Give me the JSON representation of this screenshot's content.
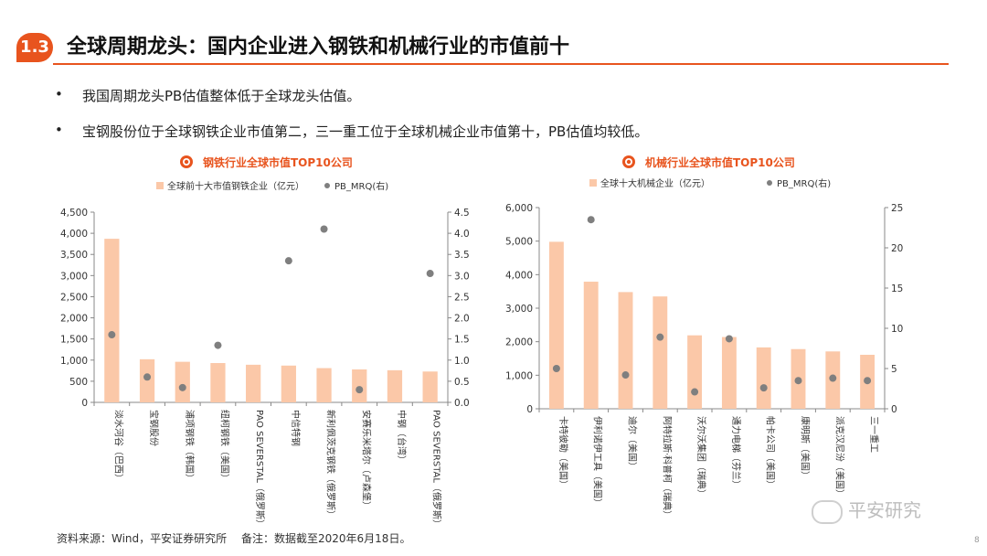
{
  "header": {
    "section_number": "1.3",
    "title": "全球周期龙头：国内企业进入钢铁和机械行业的市值前十"
  },
  "bullets": [
    "我国周期龙头PB估值整体低于全球龙头估值。",
    "宝钢股份位于全球钢铁企业市值第二，三一重工位于全球机械企业市值第十，PB估值均较低。"
  ],
  "chart_data": [
    {
      "type": "bar",
      "title": "钢铁行业全球市值TOP10公司",
      "series": [
        {
          "name": "全球前十大市值钢铁企业（亿元）",
          "kind": "bar",
          "axis": "left",
          "color": "#fbc8a8",
          "values": [
            3870,
            1020,
            960,
            930,
            890,
            870,
            810,
            780,
            760,
            730
          ]
        },
        {
          "name": "PB_MRQ(右)",
          "kind": "scatter",
          "axis": "right",
          "color": "#7f7f7f",
          "values": [
            1.6,
            0.6,
            0.35,
            1.35,
            null,
            3.35,
            4.1,
            0.3,
            null,
            3.05
          ]
        }
      ],
      "categories": [
        "淡水河谷（巴西）",
        "宝钢股份",
        "浦项钢铁（韩国）",
        "纽柯钢铁（美国）",
        "PAO SEVERSTAL（俄罗斯）",
        "中信特钢",
        "新利佩茨克钢铁（俄罗斯）",
        "安赛乐米塔尔（卢森堡）",
        "中钢（台湾）",
        "PAO SEVERSTAL（俄罗斯）"
      ],
      "y_left": {
        "min": 0,
        "max": 4500,
        "ticks": [
          "0",
          "500",
          "1,000",
          "1,500",
          "2,000",
          "2,500",
          "3,000",
          "3,500",
          "4,000",
          "4,500"
        ]
      },
      "y_right": {
        "min": 0,
        "max": 4.5,
        "ticks": [
          "0.0",
          "0.5",
          "1.0",
          "1.5",
          "2.0",
          "2.5",
          "3.0",
          "3.5",
          "4.0",
          "4.5"
        ]
      },
      "legend": "top",
      "grid": false
    },
    {
      "type": "bar",
      "title": "机械行业全球市值TOP10公司",
      "series": [
        {
          "name": "全球十大机械企业（亿元）",
          "kind": "bar",
          "axis": "left",
          "color": "#fbc8a8",
          "values": [
            4980,
            3790,
            3480,
            3350,
            2190,
            2140,
            1830,
            1780,
            1710,
            1610
          ]
        },
        {
          "name": "PB_MRQ(右)",
          "kind": "scatter",
          "axis": "right",
          "color": "#7f7f7f",
          "values": [
            5.0,
            23.5,
            4.2,
            8.9,
            2.1,
            8.7,
            2.6,
            3.5,
            3.8,
            3.5
          ]
        }
      ],
      "categories": [
        "卡特彼勒（美国）",
        "伊利诺伊工具（美国）",
        "迪尔（美国）",
        "阿特拉斯·科普柯（瑞典）",
        "沃尔沃集团（瑞典）",
        "通力电梯（芬兰）",
        "帕卡公司（美国）",
        "康明斯（美国）",
        "派克汉尼汾（美国）",
        "三一重工"
      ],
      "y_left": {
        "min": 0,
        "max": 6000,
        "ticks": [
          "0",
          "1,000",
          "2,000",
          "3,000",
          "4,000",
          "5,000",
          "6,000"
        ]
      },
      "y_right": {
        "min": 0,
        "max": 25,
        "ticks": [
          "0",
          "5",
          "10",
          "15",
          "20",
          "25"
        ]
      },
      "legend": "top",
      "grid": false
    }
  ],
  "footer": {
    "source": "资料来源：Wind，平安证券研究所",
    "note": "备注：数据截至2020年6月18日。"
  },
  "watermark": "平安研究",
  "page_number": "8"
}
